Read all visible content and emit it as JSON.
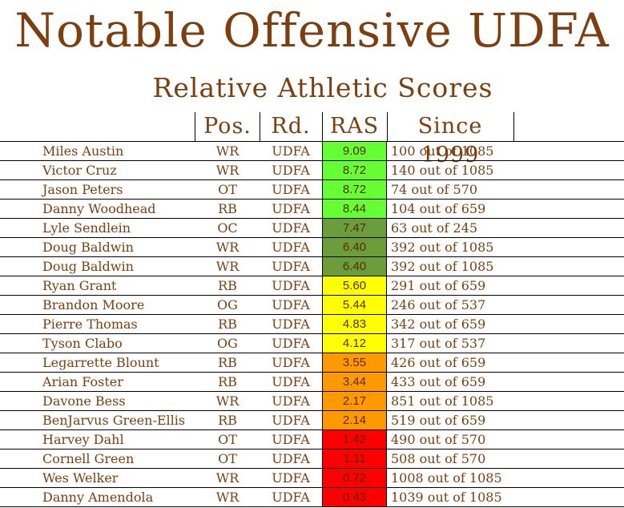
{
  "title": "Notable Offensive UDFA",
  "subtitle": "Relative Athletic Scores",
  "columns": {
    "pos": "Pos.",
    "rd": "Rd.",
    "ras": "RAS",
    "since": "Since 1999"
  },
  "rows": [
    {
      "name": "Miles Austin",
      "pos": "WR",
      "rd": "UDFA",
      "ras": "9.09",
      "since": "100 out of 1085",
      "color": "#66ff33"
    },
    {
      "name": "Victor Cruz",
      "pos": "WR",
      "rd": "UDFA",
      "ras": "8.72",
      "since": "140 out of 1085",
      "color": "#66ff33"
    },
    {
      "name": "Jason Peters",
      "pos": "OT",
      "rd": "UDFA",
      "ras": "8.72",
      "since": "74 out of 570",
      "color": "#66ff33"
    },
    {
      "name": "Danny Woodhead",
      "pos": "RB",
      "rd": "UDFA",
      "ras": "8.44",
      "since": "104 out of 659",
      "color": "#66ff33"
    },
    {
      "name": "Lyle Sendlein",
      "pos": "OC",
      "rd": "UDFA",
      "ras": "7.47",
      "since": "63 out of 245",
      "color": "#6b9e3a"
    },
    {
      "name": "Doug Baldwin",
      "pos": "WR",
      "rd": "UDFA",
      "ras": "6.40",
      "since": "392 out of 1085",
      "color": "#6b9e3a"
    },
    {
      "name": "Doug Baldwin",
      "pos": "WR",
      "rd": "UDFA",
      "ras": "6.40",
      "since": "392 out of 1085",
      "color": "#6b9e3a"
    },
    {
      "name": "Ryan Grant",
      "pos": "RB",
      "rd": "UDFA",
      "ras": "5.60",
      "since": "291 out of 659",
      "color": "#ffff00"
    },
    {
      "name": "Brandon Moore",
      "pos": "OG",
      "rd": "UDFA",
      "ras": "5.44",
      "since": "246 out of 537",
      "color": "#ffff00"
    },
    {
      "name": "Pierre Thomas",
      "pos": "RB",
      "rd": "UDFA",
      "ras": "4.83",
      "since": "342 out of 659",
      "color": "#ffff00"
    },
    {
      "name": "Tyson Clabo",
      "pos": "OG",
      "rd": "UDFA",
      "ras": "4.12",
      "since": "317 out of 537",
      "color": "#ffff00"
    },
    {
      "name": "Legarrette Blount",
      "pos": "RB",
      "rd": "UDFA",
      "ras": "3.55",
      "since": "426 out of 659",
      "color": "#ff9900"
    },
    {
      "name": "Arian Foster",
      "pos": "RB",
      "rd": "UDFA",
      "ras": "3.44",
      "since": "433 out of 659",
      "color": "#ff9900"
    },
    {
      "name": "Davone Bess",
      "pos": "WR",
      "rd": "UDFA",
      "ras": "2.17",
      "since": "851 out of 1085",
      "color": "#ff9900"
    },
    {
      "name": "BenJarvus Green-Ellis",
      "pos": "RB",
      "rd": "UDFA",
      "ras": "2.14",
      "since": "519 out of 659",
      "color": "#ff9900"
    },
    {
      "name": "Harvey Dahl",
      "pos": "OT",
      "rd": "UDFA",
      "ras": "1.42",
      "since": "490 out of 570",
      "color": "#ff0000"
    },
    {
      "name": "Cornell Green",
      "pos": "OT",
      "rd": "UDFA",
      "ras": "1.11",
      "since": "508 out of 570",
      "color": "#ff0000"
    },
    {
      "name": "Wes Welker",
      "pos": "WR",
      "rd": "UDFA",
      "ras": "0.72",
      "since": "1008 out of 1085",
      "color": "#ff0000"
    },
    {
      "name": "Danny Amendola",
      "pos": "WR",
      "rd": "UDFA",
      "ras": "0.43",
      "since": "1039 out of 1085",
      "color": "#ff0000"
    }
  ],
  "chart_data": {
    "type": "table",
    "title": "Notable Offensive UDFA",
    "subtitle": "Relative Athletic Scores",
    "columns": [
      "Pos.",
      "Rd.",
      "RAS",
      "Since 1999"
    ],
    "categories": [
      "Miles Austin",
      "Victor Cruz",
      "Jason Peters",
      "Danny Woodhead",
      "Lyle Sendlein",
      "Doug Baldwin",
      "Doug Baldwin",
      "Ryan Grant",
      "Brandon Moore",
      "Pierre Thomas",
      "Tyson Clabo",
      "Legarrette Blount",
      "Arian Foster",
      "Davone Bess",
      "BenJarvus Green-Ellis",
      "Harvey Dahl",
      "Cornell Green",
      "Wes Welker",
      "Danny Amendola"
    ],
    "values": [
      9.09,
      8.72,
      8.72,
      8.44,
      7.47,
      6.4,
      6.4,
      5.6,
      5.44,
      4.83,
      4.12,
      3.55,
      3.44,
      2.17,
      2.14,
      1.42,
      1.11,
      0.72,
      0.43
    ]
  }
}
